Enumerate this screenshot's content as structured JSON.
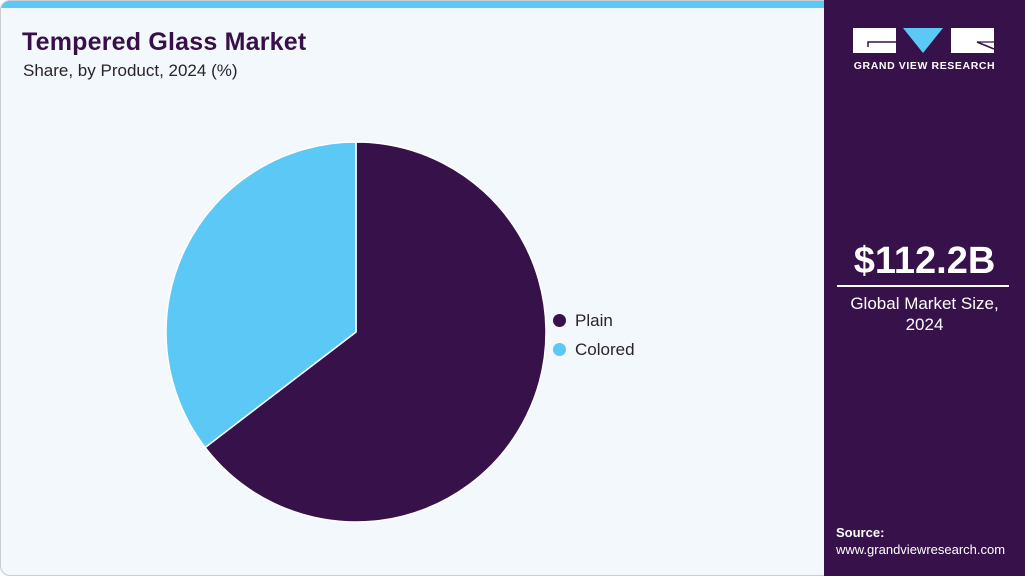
{
  "header": {
    "title": "Tempered Glass Market",
    "subtitle": "Share, by Product, 2024 (%)"
  },
  "legend": [
    {
      "label": "Plain",
      "color": "#37114a"
    },
    {
      "label": "Colored",
      "color": "#5bc8f5"
    }
  ],
  "sidebar": {
    "brand": "GRAND VIEW RESEARCH",
    "market_value": "$112.2B",
    "market_label_line1": "Global Market Size,",
    "market_label_line2": "2024",
    "source_label": "Source:",
    "source_url": "www.grandviewresearch.com"
  },
  "colors": {
    "accent": "#5bc8f5",
    "brand": "#37114a",
    "background": "#f3f8fc"
  },
  "chart_data": {
    "type": "pie",
    "title": "Tempered Glass Market",
    "subtitle": "Share, by Product, 2024 (%)",
    "categories": [
      "Plain",
      "Colored"
    ],
    "values": [
      64.6,
      35.4
    ],
    "colors": [
      "#37114a",
      "#5bc8f5"
    ],
    "start_angle_deg": 0,
    "direction": "clockwise",
    "legend_position": "right",
    "data_labels": false
  }
}
